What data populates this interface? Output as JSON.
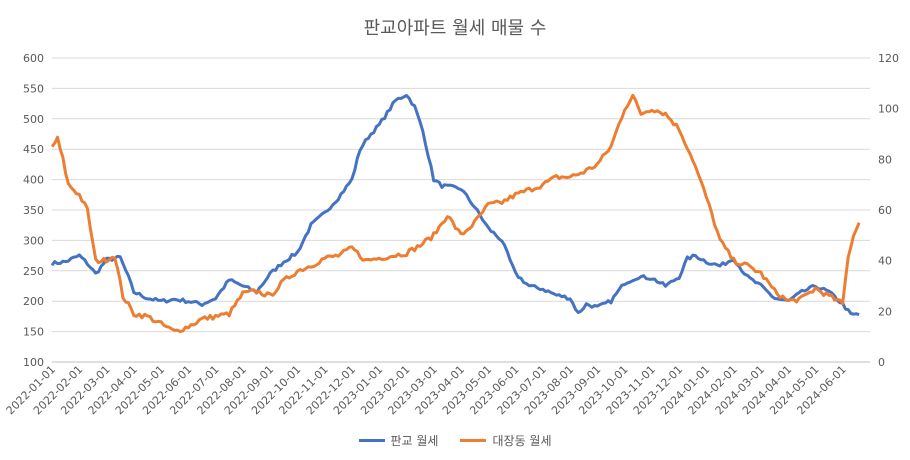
{
  "chart_data": {
    "type": "line",
    "title": "판교아파트 월세 매물 수",
    "left_axis": {
      "min": 100,
      "max": 600,
      "ticks": [
        "600",
        "550",
        "500",
        "450",
        "400",
        "350",
        "300",
        "250",
        "200",
        "150",
        "100"
      ]
    },
    "right_axis": {
      "min": 0,
      "max": 120,
      "ticks": [
        "120",
        "100",
        "80",
        "60",
        "40",
        "20",
        "0"
      ]
    },
    "x_ticks": [
      "2022-01-01",
      "2022-02-01",
      "2022-03-01",
      "2022-04-01",
      "2022-05-01",
      "2022-06-01",
      "2022-07-01",
      "2022-08-01",
      "2022-09-01",
      "2022-10-01",
      "2022-11-01",
      "2022-12-01",
      "2023-01-01",
      "2023-02-01",
      "2023-03-01",
      "2023-04-01",
      "2023-05-01",
      "2023-06-01",
      "2023-07-01",
      "2023-08-01",
      "2023-09-01",
      "2023-10-01",
      "2023-11-01",
      "2023-12-01",
      "2024-01-01",
      "2024-02-01",
      "2024-03-01",
      "2024-04-01",
      "2024-05-01",
      "2024-06-01"
    ],
    "series": [
      {
        "name": "판교 월세",
        "axis": "left",
        "color": "#4472C4",
        "x_index": [
          0,
          0.5,
          1,
          1.3,
          1.6,
          2,
          2.5,
          2.8,
          3,
          3.5,
          4,
          4.5,
          5,
          5.5,
          6,
          6.5,
          7,
          7.5,
          8,
          8.5,
          9,
          9.5,
          10,
          10.5,
          11,
          11.3,
          11.6,
          12,
          12.3,
          12.6,
          13,
          13.3,
          13.6,
          14,
          14.3,
          14.6,
          15,
          15.5,
          16,
          16.5,
          17,
          17.5,
          18,
          18.5,
          19,
          19.3,
          19.6,
          20,
          20.5,
          21,
          21.5,
          22,
          22.5,
          23,
          23.3,
          23.6,
          24,
          24.5,
          25,
          25.5,
          26,
          26.5,
          27,
          27.5,
          28,
          28.5,
          29,
          29.3,
          29.6
        ],
        "values": [
          262,
          265,
          275,
          262,
          245,
          268,
          272,
          240,
          215,
          205,
          200,
          203,
          200,
          195,
          205,
          235,
          225,
          215,
          245,
          265,
          280,
          325,
          345,
          370,
          400,
          450,
          470,
          490,
          510,
          530,
          540,
          520,
          480,
          400,
          390,
          388,
          385,
          355,
          320,
          300,
          245,
          225,
          220,
          210,
          205,
          180,
          195,
          190,
          200,
          230,
          240,
          238,
          225,
          240,
          270,
          275,
          265,
          258,
          270,
          240,
          225,
          205,
          200,
          215,
          225,
          215,
          195,
          178,
          178
        ],
        "marks_left": 264
      },
      {
        "name": "대장동 월세",
        "axis": "right",
        "color": "#ED7D31",
        "x_index": [
          0,
          0.2,
          0.4,
          0.6,
          0.8,
          1,
          1.3,
          1.6,
          1.9,
          2.3,
          2.6,
          3,
          3.5,
          4,
          4.5,
          5,
          5.5,
          6,
          6.5,
          7,
          7.5,
          8,
          8.5,
          9,
          9.5,
          10,
          10.5,
          11,
          11.5,
          12,
          12.5,
          13,
          13.5,
          14,
          14.5,
          15,
          15.5,
          16,
          16.5,
          17,
          17.5,
          18,
          18.5,
          19,
          19.5,
          20,
          20.5,
          21,
          21.3,
          21.6,
          22,
          22.5,
          23,
          23.5,
          24,
          24.5,
          25,
          25.5,
          26,
          26.5,
          27,
          27.5,
          28,
          28.5,
          29,
          29.2,
          29.4,
          29.6
        ],
        "values": [
          85,
          88,
          80,
          70,
          68,
          66,
          60,
          40,
          40,
          42,
          26,
          19,
          18,
          15,
          12,
          14,
          17,
          18,
          19,
          27,
          28,
          26,
          32,
          36,
          38,
          41,
          42,
          45,
          40,
          41,
          42,
          43,
          46,
          50,
          58,
          50,
          55,
          62,
          63,
          66,
          68,
          70,
          73,
          73,
          75,
          78,
          85,
          100,
          105,
          98,
          100,
          98,
          92,
          80,
          65,
          48,
          40,
          38,
          35,
          28,
          24,
          25,
          29,
          26,
          23,
          42,
          50,
          55
        ]
      }
    ],
    "legend": [
      "판교 월세",
      "대장동 월세"
    ],
    "legend_position": "bottom"
  }
}
